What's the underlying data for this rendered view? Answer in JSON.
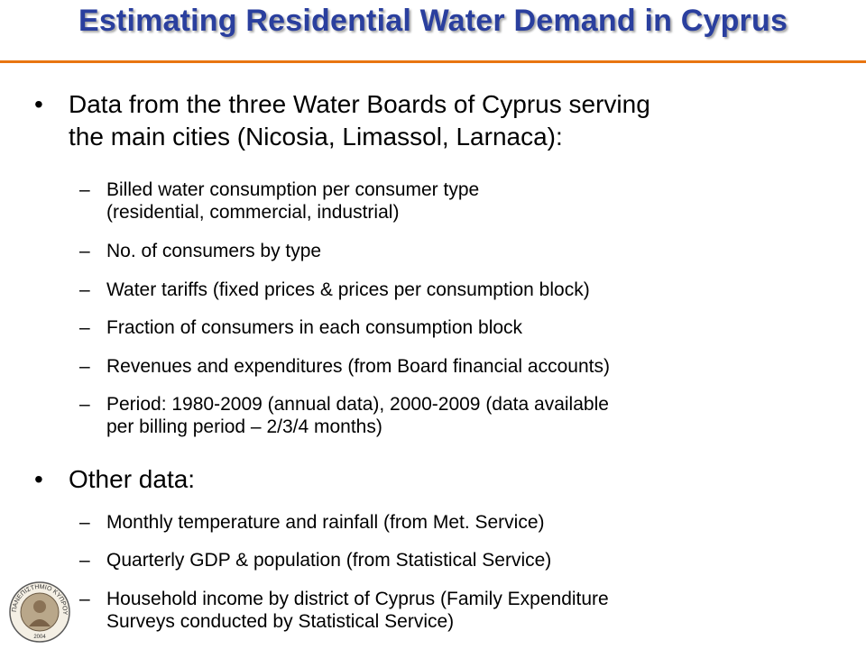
{
  "title": "Estimating Residential Water Demand in Cyprus",
  "bullets": [
    {
      "text_line1": "Data from the three Water Boards of Cyprus serving",
      "text_line2": "the main cities (Nicosia, Limassol, Larnaca):",
      "subitems": [
        {
          "line1": "Billed water consumption per consumer type",
          "line2": "(residential, commercial, industrial)"
        },
        {
          "line1": "No. of consumers by type"
        },
        {
          "line1": "Water tariffs (fixed prices & prices per consumption block)"
        },
        {
          "line1": "Fraction of consumers in each consumption block"
        },
        {
          "line1": "Revenues and expenditures (from Board financial accounts)"
        },
        {
          "line1": "Period: 1980-2009 (annual data), 2000-2009 (data available",
          "line2": "per billing period – 2/3/4 months)"
        }
      ]
    },
    {
      "text_line1": "Other data:",
      "subitems": [
        {
          "line1": "Monthly temperature and rainfall (from Met. Service)"
        },
        {
          "line1": "Quarterly GDP & population (from Statistical Service)"
        },
        {
          "line1": "Household income by district of Cyprus (Family Expenditure",
          "line2": "Surveys conducted by Statistical Service)"
        }
      ]
    }
  ],
  "glyphs": {
    "bullet": "•",
    "dash": "–"
  },
  "logo": {
    "text": "ΠΑΝΕΠΙΣΤΗΜΙΟ ΚΥΠΡΟΥ",
    "year": "2004"
  },
  "colors": {
    "title": "#2a3f9e",
    "rule": "#e87511"
  }
}
